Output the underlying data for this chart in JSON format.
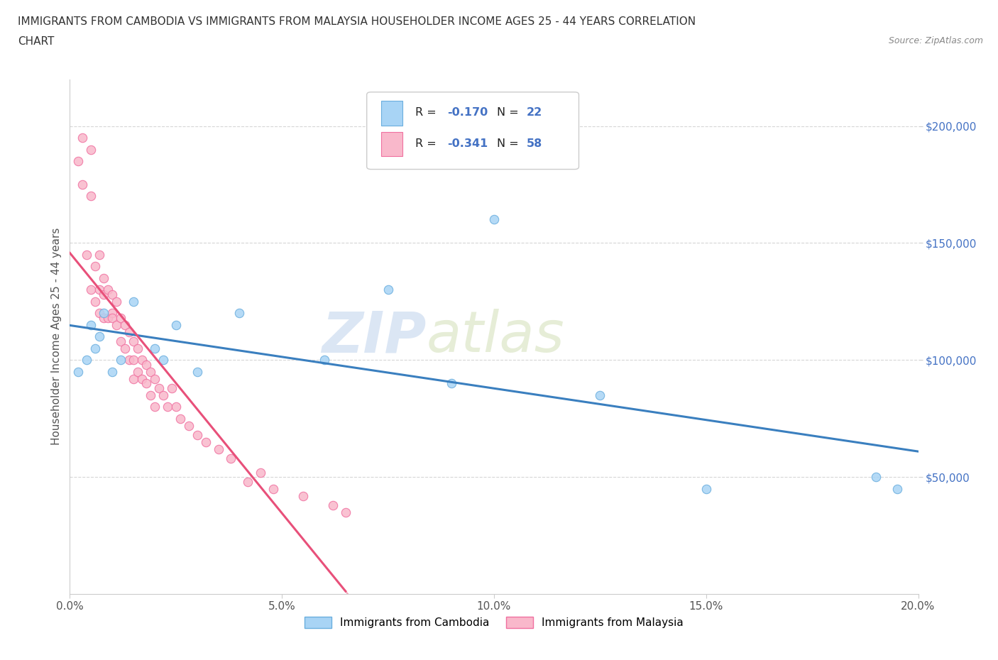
{
  "title_line1": "IMMIGRANTS FROM CAMBODIA VS IMMIGRANTS FROM MALAYSIA HOUSEHOLDER INCOME AGES 25 - 44 YEARS CORRELATION",
  "title_line2": "CHART",
  "source_text": "Source: ZipAtlas.com",
  "ylabel": "Householder Income Ages 25 - 44 years",
  "xlim": [
    0.0,
    0.2
  ],
  "ylim": [
    0,
    220000
  ],
  "xtick_labels": [
    "0.0%",
    "5.0%",
    "10.0%",
    "15.0%",
    "20.0%"
  ],
  "xtick_values": [
    0.0,
    0.05,
    0.1,
    0.15,
    0.2
  ],
  "ytick_labels": [
    "$50,000",
    "$100,000",
    "$150,000",
    "$200,000"
  ],
  "ytick_values": [
    50000,
    100000,
    150000,
    200000
  ],
  "cambodia_color": "#A8D4F5",
  "malaysia_color": "#F9B8CB",
  "cambodia_edge_color": "#6AAEDE",
  "malaysia_edge_color": "#F070A0",
  "cambodia_line_color": "#3A7FBF",
  "malaysia_line_color": "#E8507A",
  "R_cambodia": -0.17,
  "N_cambodia": 22,
  "R_malaysia": -0.341,
  "N_malaysia": 58,
  "legend_label_cambodia": "Immigrants from Cambodia",
  "legend_label_malaysia": "Immigrants from Malaysia",
  "watermark_zip": "ZIP",
  "watermark_atlas": "atlas",
  "cambodia_x": [
    0.002,
    0.004,
    0.005,
    0.006,
    0.007,
    0.008,
    0.01,
    0.012,
    0.015,
    0.02,
    0.022,
    0.025,
    0.03,
    0.04,
    0.06,
    0.075,
    0.09,
    0.1,
    0.125,
    0.15,
    0.19,
    0.195
  ],
  "cambodia_y": [
    95000,
    100000,
    115000,
    105000,
    110000,
    120000,
    95000,
    100000,
    125000,
    105000,
    100000,
    115000,
    95000,
    120000,
    100000,
    130000,
    90000,
    160000,
    85000,
    45000,
    50000,
    45000
  ],
  "malaysia_x": [
    0.002,
    0.003,
    0.003,
    0.004,
    0.005,
    0.005,
    0.005,
    0.006,
    0.006,
    0.007,
    0.007,
    0.007,
    0.008,
    0.008,
    0.008,
    0.009,
    0.009,
    0.01,
    0.01,
    0.01,
    0.011,
    0.011,
    0.012,
    0.012,
    0.013,
    0.013,
    0.014,
    0.014,
    0.015,
    0.015,
    0.015,
    0.016,
    0.016,
    0.017,
    0.017,
    0.018,
    0.018,
    0.019,
    0.019,
    0.02,
    0.02,
    0.021,
    0.022,
    0.023,
    0.024,
    0.025,
    0.026,
    0.028,
    0.03,
    0.032,
    0.035,
    0.038,
    0.042,
    0.045,
    0.048,
    0.055,
    0.062,
    0.065
  ],
  "malaysia_y": [
    185000,
    195000,
    175000,
    145000,
    190000,
    170000,
    130000,
    140000,
    125000,
    145000,
    130000,
    120000,
    135000,
    128000,
    118000,
    130000,
    118000,
    128000,
    120000,
    118000,
    125000,
    115000,
    118000,
    108000,
    115000,
    105000,
    112000,
    100000,
    108000,
    100000,
    92000,
    105000,
    95000,
    100000,
    92000,
    98000,
    90000,
    95000,
    85000,
    92000,
    80000,
    88000,
    85000,
    80000,
    88000,
    80000,
    75000,
    72000,
    68000,
    65000,
    62000,
    58000,
    48000,
    52000,
    45000,
    42000,
    38000,
    35000
  ]
}
